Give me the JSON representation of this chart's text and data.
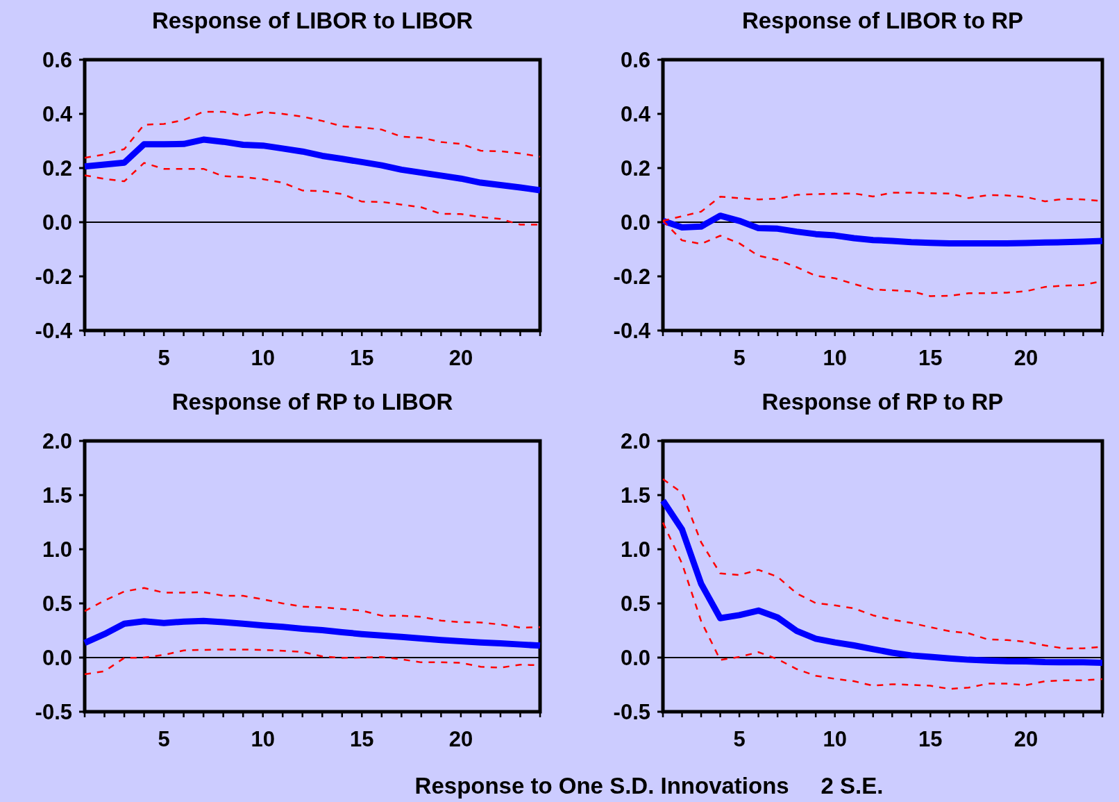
{
  "chart_data": [
    {
      "type": "line",
      "title": "Response of LIBOR to LIBOR",
      "x": [
        1,
        2,
        3,
        4,
        5,
        6,
        7,
        8,
        9,
        10,
        11,
        12,
        13,
        14,
        15,
        16,
        17,
        18,
        19,
        20,
        21,
        22,
        23,
        24
      ],
      "xlim": [
        1,
        24
      ],
      "xticks": [
        {
          "value": 1,
          "label": null
        },
        {
          "value": 2,
          "label": null
        },
        {
          "value": 3,
          "label": null
        },
        {
          "value": 4,
          "label": null
        },
        5,
        {
          "value": 6,
          "label": null
        },
        {
          "value": 7,
          "label": null
        },
        {
          "value": 8,
          "label": null
        },
        {
          "value": 9,
          "label": null
        },
        10,
        {
          "value": 11,
          "label": null
        },
        {
          "value": 12,
          "label": null
        },
        {
          "value": 13,
          "label": null
        },
        {
          "value": 14,
          "label": null
        },
        15,
        {
          "value": 16,
          "label": null
        },
        {
          "value": 17,
          "label": null
        },
        {
          "value": 18,
          "label": null
        },
        {
          "value": 19,
          "label": null
        },
        20,
        {
          "value": 21,
          "label": null
        },
        {
          "value": 22,
          "label": null
        },
        {
          "value": 23,
          "label": null
        },
        {
          "value": 24,
          "label": null
        }
      ],
      "ylim": [
        -0.4,
        0.6
      ],
      "yticks": [
        {
          "value": -0.4,
          "label": "-0.4"
        },
        {
          "value": -0.2,
          "label": "-0.2"
        },
        {
          "value": 0,
          "label": "0.0"
        },
        {
          "value": 0.2,
          "label": "0.2"
        },
        {
          "value": 0.4,
          "label": "0.4"
        },
        {
          "value": 0.6,
          "label": "0.6"
        }
      ],
      "ref_lines": [
        {
          "axis": "y",
          "value": 0,
          "color": "#000000"
        }
      ],
      "annotations": [
        "Response to One S.D. Innovations     2 S.E."
      ],
      "series": [
        {
          "color": "#0000ff",
          "line_style": "solid",
          "values": [
            0.206,
            0.213,
            0.22,
            0.288,
            0.288,
            0.289,
            0.305,
            0.297,
            0.286,
            0.283,
            0.272,
            0.261,
            0.245,
            0.234,
            0.222,
            0.21,
            0.194,
            0.183,
            0.172,
            0.161,
            0.146,
            0.137,
            0.128,
            0.118
          ]
        },
        {
          "color": "#ff0000",
          "line_style": "dashed",
          "values": [
            0.238,
            0.25,
            0.27,
            0.36,
            0.363,
            0.377,
            0.408,
            0.408,
            0.393,
            0.407,
            0.4,
            0.39,
            0.374,
            0.354,
            0.35,
            0.342,
            0.316,
            0.312,
            0.296,
            0.289,
            0.264,
            0.262,
            0.254,
            0.242
          ]
        },
        {
          "color": "#ff0000",
          "line_style": "dashed",
          "values": [
            0.173,
            0.16,
            0.151,
            0.219,
            0.197,
            0.197,
            0.197,
            0.17,
            0.167,
            0.159,
            0.146,
            0.117,
            0.115,
            0.104,
            0.076,
            0.075,
            0.065,
            0.055,
            0.031,
            0.03,
            0.019,
            0.012,
            -0.009,
            -0.009
          ]
        }
      ]
    },
    {
      "type": "line",
      "title": "Response of LIBOR to RP",
      "x": [
        1,
        2,
        3,
        4,
        5,
        6,
        7,
        8,
        9,
        10,
        11,
        12,
        13,
        14,
        15,
        16,
        17,
        18,
        19,
        20,
        21,
        22,
        23,
        24
      ],
      "xlim": [
        1,
        24
      ],
      "xticks": [
        {
          "value": 1,
          "label": null
        },
        {
          "value": 2,
          "label": null
        },
        {
          "value": 3,
          "label": null
        },
        {
          "value": 4,
          "label": null
        },
        5,
        {
          "value": 6,
          "label": null
        },
        {
          "value": 7,
          "label": null
        },
        {
          "value": 8,
          "label": null
        },
        {
          "value": 9,
          "label": null
        },
        10,
        {
          "value": 11,
          "label": null
        },
        {
          "value": 12,
          "label": null
        },
        {
          "value": 13,
          "label": null
        },
        {
          "value": 14,
          "label": null
        },
        15,
        {
          "value": 16,
          "label": null
        },
        {
          "value": 17,
          "label": null
        },
        {
          "value": 18,
          "label": null
        },
        {
          "value": 19,
          "label": null
        },
        20,
        {
          "value": 21,
          "label": null
        },
        {
          "value": 22,
          "label": null
        },
        {
          "value": 23,
          "label": null
        },
        {
          "value": 24,
          "label": null
        }
      ],
      "ylim": [
        -0.4,
        0.6
      ],
      "yticks": [
        {
          "value": -0.4,
          "label": "-0.4"
        },
        {
          "value": -0.2,
          "label": "-0.2"
        },
        {
          "value": 0,
          "label": "0.0"
        },
        {
          "value": 0.2,
          "label": "0.2"
        },
        {
          "value": 0.4,
          "label": "0.4"
        },
        {
          "value": 0.6,
          "label": "0.6"
        }
      ],
      "ref_lines": [
        {
          "axis": "y",
          "value": 0,
          "color": "#000000"
        }
      ],
      "series": [
        {
          "color": "#0000ff",
          "line_style": "solid",
          "values": [
            0.005,
            -0.019,
            -0.016,
            0.024,
            0.005,
            -0.022,
            -0.024,
            -0.035,
            -0.044,
            -0.049,
            -0.059,
            -0.066,
            -0.069,
            -0.074,
            -0.076,
            -0.078,
            -0.078,
            -0.078,
            -0.078,
            -0.077,
            -0.075,
            -0.074,
            -0.072,
            -0.069
          ]
        },
        {
          "color": "#ff0000",
          "line_style": "dashed",
          "values": [
            0.005,
            0.022,
            0.039,
            0.094,
            0.089,
            0.084,
            0.087,
            0.101,
            0.104,
            0.105,
            0.106,
            0.095,
            0.109,
            0.109,
            0.107,
            0.106,
            0.089,
            0.1,
            0.099,
            0.093,
            0.077,
            0.086,
            0.084,
            0.078
          ]
        },
        {
          "color": "#ff0000",
          "line_style": "dashed",
          "values": [
            0.005,
            -0.067,
            -0.08,
            -0.05,
            -0.078,
            -0.124,
            -0.139,
            -0.166,
            -0.198,
            -0.207,
            -0.228,
            -0.249,
            -0.251,
            -0.255,
            -0.273,
            -0.272,
            -0.262,
            -0.262,
            -0.26,
            -0.255,
            -0.239,
            -0.234,
            -0.232,
            -0.217
          ]
        }
      ]
    },
    {
      "type": "line",
      "title": "Response of RP to LIBOR",
      "x": [
        1,
        2,
        3,
        4,
        5,
        6,
        7,
        8,
        9,
        10,
        11,
        12,
        13,
        14,
        15,
        16,
        17,
        18,
        19,
        20,
        21,
        22,
        23,
        24
      ],
      "xlim": [
        1,
        24
      ],
      "xticks": [
        {
          "value": 1,
          "label": null
        },
        {
          "value": 2,
          "label": null
        },
        {
          "value": 3,
          "label": null
        },
        {
          "value": 4,
          "label": null
        },
        5,
        {
          "value": 6,
          "label": null
        },
        {
          "value": 7,
          "label": null
        },
        {
          "value": 8,
          "label": null
        },
        {
          "value": 9,
          "label": null
        },
        10,
        {
          "value": 11,
          "label": null
        },
        {
          "value": 12,
          "label": null
        },
        {
          "value": 13,
          "label": null
        },
        {
          "value": 14,
          "label": null
        },
        15,
        {
          "value": 16,
          "label": null
        },
        {
          "value": 17,
          "label": null
        },
        {
          "value": 18,
          "label": null
        },
        {
          "value": 19,
          "label": null
        },
        20,
        {
          "value": 21,
          "label": null
        },
        {
          "value": 22,
          "label": null
        },
        {
          "value": 23,
          "label": null
        },
        {
          "value": 24,
          "label": null
        }
      ],
      "ylim": [
        -0.5,
        2.0
      ],
      "yticks": [
        {
          "value": -0.5,
          "label": "-0.5"
        },
        {
          "value": 0,
          "label": "0.0"
        },
        {
          "value": 0.5,
          "label": "0.5"
        },
        {
          "value": 1,
          "label": "1.0"
        },
        {
          "value": 1.5,
          "label": "1.5"
        },
        {
          "value": 2,
          "label": "2.0"
        }
      ],
      "ref_lines": [
        {
          "axis": "y",
          "value": 0,
          "color": "#000000"
        }
      ],
      "series": [
        {
          "color": "#0000ff",
          "line_style": "solid",
          "values": [
            0.135,
            0.217,
            0.313,
            0.335,
            0.319,
            0.332,
            0.338,
            0.327,
            0.313,
            0.297,
            0.283,
            0.266,
            0.253,
            0.234,
            0.217,
            0.203,
            0.19,
            0.176,
            0.162,
            0.151,
            0.14,
            0.132,
            0.121,
            0.11
          ]
        },
        {
          "color": "#ff0000",
          "line_style": "dashed",
          "values": [
            0.429,
            0.527,
            0.61,
            0.643,
            0.599,
            0.6,
            0.604,
            0.571,
            0.57,
            0.538,
            0.5,
            0.47,
            0.464,
            0.448,
            0.434,
            0.387,
            0.387,
            0.376,
            0.341,
            0.327,
            0.324,
            0.305,
            0.277,
            0.28
          ]
        },
        {
          "color": "#ff0000",
          "line_style": "dashed",
          "values": [
            -0.154,
            -0.126,
            -0.003,
            0.0,
            0.025,
            0.066,
            0.071,
            0.074,
            0.074,
            0.071,
            0.063,
            0.052,
            0.011,
            -0.003,
            0.0,
            0.005,
            -0.016,
            -0.044,
            -0.044,
            -0.049,
            -0.085,
            -0.093,
            -0.066,
            -0.071
          ]
        }
      ]
    },
    {
      "type": "line",
      "title": "Response of RP to RP",
      "x": [
        1,
        2,
        3,
        4,
        5,
        6,
        7,
        8,
        9,
        10,
        11,
        12,
        13,
        14,
        15,
        16,
        17,
        18,
        19,
        20,
        21,
        22,
        23,
        24
      ],
      "xlim": [
        1,
        24
      ],
      "xticks": [
        {
          "value": 1,
          "label": null
        },
        {
          "value": 2,
          "label": null
        },
        {
          "value": 3,
          "label": null
        },
        {
          "value": 4,
          "label": null
        },
        5,
        {
          "value": 6,
          "label": null
        },
        {
          "value": 7,
          "label": null
        },
        {
          "value": 8,
          "label": null
        },
        {
          "value": 9,
          "label": null
        },
        10,
        {
          "value": 11,
          "label": null
        },
        {
          "value": 12,
          "label": null
        },
        {
          "value": 13,
          "label": null
        },
        {
          "value": 14,
          "label": null
        },
        15,
        {
          "value": 16,
          "label": null
        },
        {
          "value": 17,
          "label": null
        },
        {
          "value": 18,
          "label": null
        },
        {
          "value": 19,
          "label": null
        },
        20,
        {
          "value": 21,
          "label": null
        },
        {
          "value": 22,
          "label": null
        },
        {
          "value": 23,
          "label": null
        },
        {
          "value": 24,
          "label": null
        }
      ],
      "ylim": [
        -0.5,
        2.0
      ],
      "yticks": [
        {
          "value": -0.5,
          "label": "-0.5"
        },
        {
          "value": 0,
          "label": "0.0"
        },
        {
          "value": 0.5,
          "label": "0.5"
        },
        {
          "value": 1,
          "label": "1.0"
        },
        {
          "value": 1.5,
          "label": "1.5"
        },
        {
          "value": 2,
          "label": "2.0"
        }
      ],
      "ref_lines": [
        {
          "axis": "y",
          "value": 0,
          "color": "#000000"
        }
      ],
      "series": [
        {
          "color": "#0000ff",
          "line_style": "solid",
          "values": [
            1.448,
            1.182,
            0.681,
            0.364,
            0.392,
            0.434,
            0.37,
            0.246,
            0.174,
            0.14,
            0.112,
            0.078,
            0.045,
            0.02,
            0.006,
            -0.008,
            -0.02,
            -0.028,
            -0.034,
            -0.036,
            -0.042,
            -0.043,
            -0.044,
            -0.048
          ]
        },
        {
          "color": "#ff0000",
          "line_style": "dashed",
          "values": [
            1.647,
            1.52,
            1.064,
            0.777,
            0.762,
            0.81,
            0.746,
            0.592,
            0.503,
            0.482,
            0.454,
            0.39,
            0.35,
            0.32,
            0.28,
            0.244,
            0.224,
            0.168,
            0.162,
            0.146,
            0.112,
            0.084,
            0.085,
            0.1
          ]
        },
        {
          "color": "#ff0000",
          "line_style": "dashed",
          "values": [
            1.246,
            0.868,
            0.336,
            -0.022,
            0.006,
            0.05,
            -0.014,
            -0.106,
            -0.168,
            -0.196,
            -0.218,
            -0.26,
            -0.246,
            -0.252,
            -0.26,
            -0.289,
            -0.277,
            -0.241,
            -0.241,
            -0.255,
            -0.218,
            -0.21,
            -0.21,
            -0.199
          ]
        }
      ]
    }
  ]
}
